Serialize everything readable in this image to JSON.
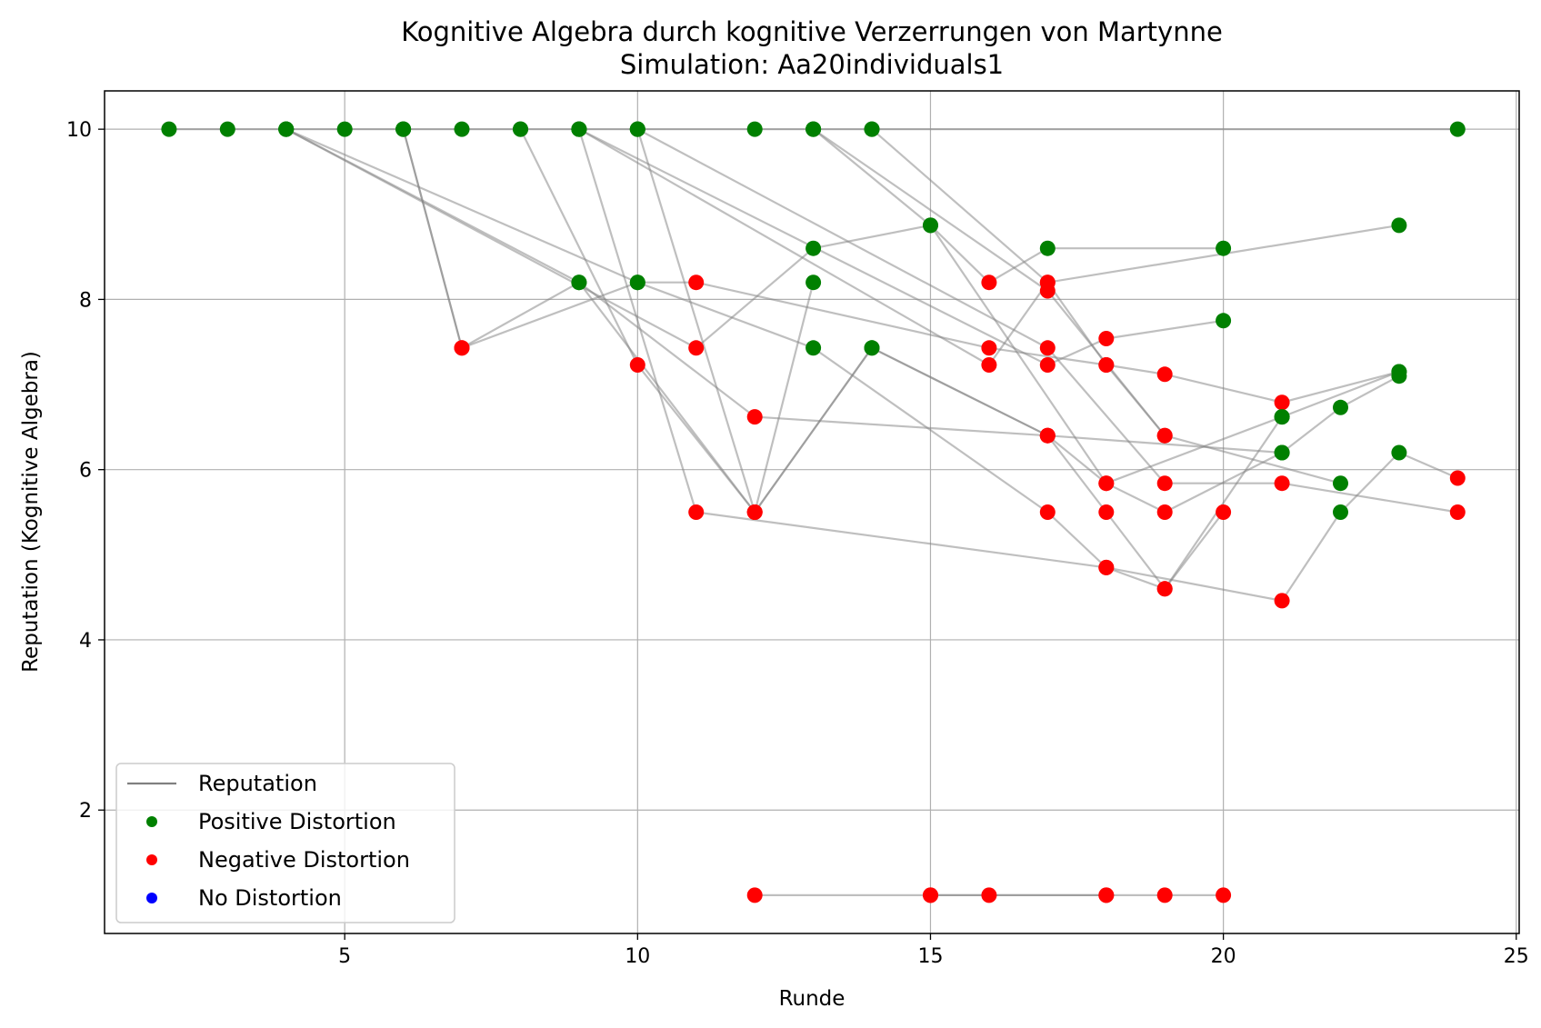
{
  "chart_data": {
    "type": "scatter",
    "title": "Kognitive Algebra durch kognitive Verzerrungen von Martynne",
    "subtitle": "Simulation: Aa20individuals1",
    "xlabel": "Runde",
    "ylabel": "Reputation (Kognitive Algebra)",
    "xlim": [
      0.9,
      25.05
    ],
    "ylim": [
      0.55,
      10.45
    ],
    "xticks": [
      5,
      10,
      15,
      20,
      25
    ],
    "yticks": [
      2,
      4,
      6,
      8,
      10
    ],
    "grid": true,
    "legend_position": "lower-left",
    "legend": [
      {
        "label": "Reputation",
        "kind": "line",
        "color": "#808080"
      },
      {
        "label": "Positive Distortion",
        "kind": "marker",
        "color": "#008000"
      },
      {
        "label": "Negative Distortion",
        "kind": "marker",
        "color": "#ff0000"
      },
      {
        "label": "No Distortion",
        "kind": "marker",
        "color": "#0000ff"
      }
    ],
    "series": [
      {
        "points": [
          [
            2,
            10
          ],
          [
            3,
            10
          ],
          [
            4,
            10
          ],
          [
            5,
            10
          ],
          [
            6,
            10
          ],
          [
            7,
            10
          ],
          [
            8,
            10
          ],
          [
            9,
            10
          ],
          [
            10,
            10
          ],
          [
            12,
            10
          ],
          [
            13,
            10
          ],
          [
            14,
            10
          ],
          [
            24,
            10
          ]
        ],
        "distortion": [
          "pos",
          "pos",
          "pos",
          "pos",
          "pos",
          "pos",
          "pos",
          "pos",
          "pos",
          "pos",
          "pos",
          "pos",
          "pos"
        ]
      },
      {
        "points": [
          [
            6,
            10
          ],
          [
            7,
            7.43
          ],
          [
            9,
            8.2
          ],
          [
            12,
            5.5
          ],
          [
            14,
            7.43
          ],
          [
            17,
            6.4
          ],
          [
            18,
            5.5
          ],
          [
            19,
            4.6
          ],
          [
            21,
            6.62
          ]
        ],
        "distortion": [
          "pos",
          "neg",
          "pos",
          "neg",
          "pos",
          "neg",
          "neg",
          "neg",
          "pos"
        ]
      },
      {
        "points": [
          [
            6,
            10
          ],
          [
            7,
            7.43
          ],
          [
            10,
            8.2
          ],
          [
            11,
            8.2
          ],
          [
            16,
            7.43
          ],
          [
            18,
            7.23
          ],
          [
            19,
            7.12
          ],
          [
            21,
            6.79
          ],
          [
            23,
            7.15
          ]
        ],
        "distortion": [
          "pos",
          "neg",
          "pos",
          "neg",
          "neg",
          "neg",
          "neg",
          "neg",
          "pos"
        ]
      },
      {
        "points": [
          [
            4,
            10
          ],
          [
            9,
            8.2
          ],
          [
            12,
            6.62
          ],
          [
            17,
            6.4
          ],
          [
            21,
            6.2
          ],
          [
            22,
            6.73
          ],
          [
            23,
            7.1
          ]
        ],
        "distortion": [
          "pos",
          "pos",
          "neg",
          "neg",
          "pos",
          "pos",
          "pos"
        ]
      },
      {
        "points": [
          [
            4,
            10
          ],
          [
            10,
            8.2
          ],
          [
            13,
            7.43
          ],
          [
            17,
            5.5
          ],
          [
            18,
            4.85
          ],
          [
            21,
            4.46
          ],
          [
            22,
            5.5
          ],
          [
            23,
            6.2
          ],
          [
            24,
            5.9
          ]
        ],
        "distortion": [
          "pos",
          "pos",
          "pos",
          "neg",
          "neg",
          "neg",
          "pos",
          "pos",
          "neg"
        ]
      },
      {
        "points": [
          [
            4,
            10
          ],
          [
            11,
            7.43
          ],
          [
            13,
            8.6
          ],
          [
            15,
            8.87
          ],
          [
            16,
            8.2
          ],
          [
            17,
            8.6
          ],
          [
            20,
            8.6
          ]
        ],
        "distortion": [
          "pos",
          "neg",
          "pos",
          "pos",
          "neg",
          "pos",
          "pos"
        ]
      },
      {
        "points": [
          [
            8,
            10
          ],
          [
            10,
            7.23
          ],
          [
            12,
            5.5
          ],
          [
            13,
            8.2
          ]
        ],
        "distortion": [
          "pos",
          "neg",
          "neg",
          "pos"
        ]
      },
      {
        "points": [
          [
            9,
            10
          ],
          [
            11,
            5.5
          ],
          [
            18,
            4.85
          ],
          [
            19,
            4.6
          ],
          [
            20,
            5.5
          ]
        ],
        "distortion": [
          "pos",
          "neg",
          "neg",
          "neg",
          "neg"
        ]
      },
      {
        "points": [
          [
            9,
            10
          ],
          [
            16,
            7.23
          ],
          [
            17,
            8.2
          ],
          [
            23,
            8.87
          ]
        ],
        "distortion": [
          "pos",
          "neg",
          "neg",
          "pos"
        ]
      },
      {
        "points": [
          [
            9,
            10
          ],
          [
            17,
            7.23
          ],
          [
            18,
            7.54
          ],
          [
            20,
            7.75
          ]
        ],
        "distortion": [
          "pos",
          "neg",
          "neg",
          "pos"
        ]
      },
      {
        "points": [
          [
            10,
            10
          ],
          [
            12,
            5.5
          ],
          [
            14,
            7.43
          ],
          [
            17,
            6.4
          ],
          [
            18,
            5.84
          ],
          [
            21,
            6.62
          ],
          [
            23,
            7.15
          ]
        ],
        "distortion": [
          "pos",
          "neg",
          "pos",
          "neg",
          "neg",
          "pos",
          "pos"
        ]
      },
      {
        "points": [
          [
            10,
            10
          ],
          [
            17,
            7.43
          ],
          [
            19,
            5.84
          ],
          [
            21,
            5.84
          ],
          [
            24,
            5.5
          ]
        ],
        "distortion": [
          "pos",
          "neg",
          "neg",
          "neg",
          "neg"
        ]
      },
      {
        "points": [
          [
            13,
            10
          ],
          [
            17,
            8.1
          ],
          [
            19,
            6.4
          ],
          [
            22,
            5.84
          ]
        ],
        "distortion": [
          "pos",
          "neg",
          "neg",
          "pos"
        ]
      },
      {
        "points": [
          [
            13,
            10
          ],
          [
            15,
            8.87
          ],
          [
            18,
            5.84
          ],
          [
            19,
            5.5
          ],
          [
            21,
            6.2
          ]
        ],
        "distortion": [
          "pos",
          "pos",
          "neg",
          "neg",
          "pos"
        ]
      },
      {
        "points": [
          [
            14,
            10
          ],
          [
            17,
            8.2
          ],
          [
            18,
            7.23
          ],
          [
            19,
            6.4
          ]
        ],
        "distortion": [
          "pos",
          "neg",
          "neg",
          "neg"
        ]
      },
      {
        "points": [
          [
            12,
            1
          ],
          [
            15,
            1
          ],
          [
            16,
            1
          ],
          [
            18,
            1
          ],
          [
            19,
            1
          ],
          [
            20,
            1
          ]
        ],
        "distortion": [
          "neg",
          "neg",
          "neg",
          "neg",
          "neg",
          "neg"
        ]
      },
      {
        "points": [
          [
            15,
            1
          ],
          [
            18,
            1
          ]
        ],
        "distortion": [
          "neg",
          "neg"
        ]
      }
    ]
  },
  "colors": {
    "positive": "#008000",
    "negative": "#ff0000",
    "none": "#0000ff",
    "line": "#808080"
  }
}
